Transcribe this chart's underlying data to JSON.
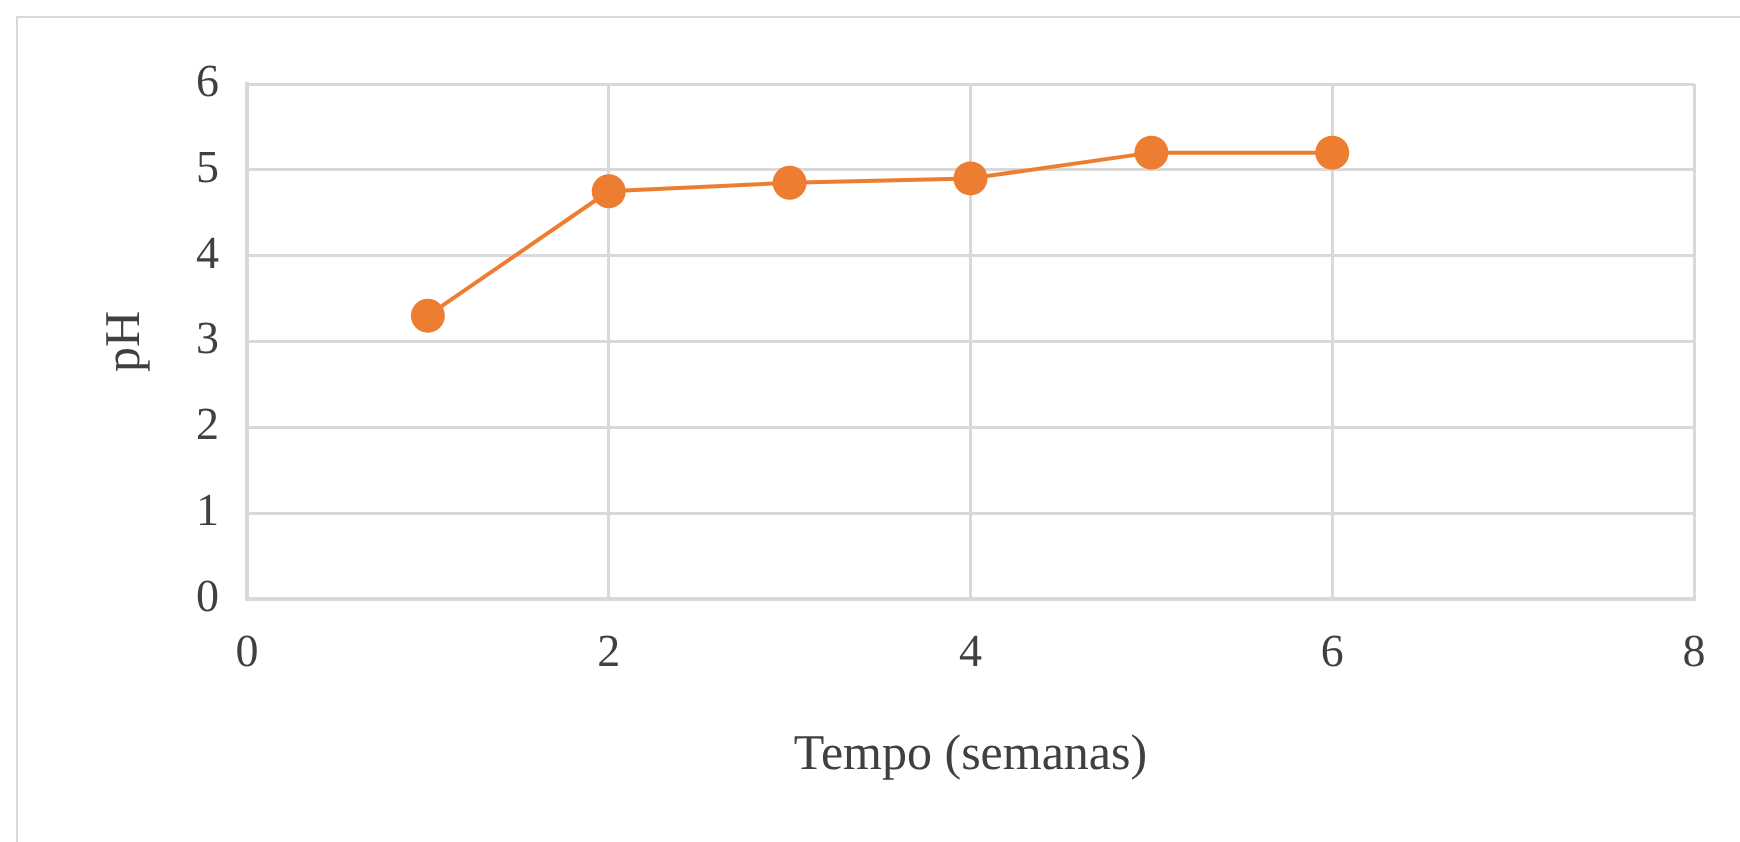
{
  "chart_data": {
    "type": "line",
    "xlabel": "Tempo (semanas)",
    "ylabel": "pH",
    "x": [
      1,
      2,
      3,
      4,
      5,
      6
    ],
    "values": [
      3.3,
      4.75,
      4.85,
      4.9,
      5.2,
      5.2
    ],
    "color": "#ed7d31",
    "xlim": [
      0,
      8
    ],
    "xticks": [
      0,
      2,
      4,
      6,
      8
    ],
    "ylim": [
      0,
      6
    ],
    "yticks": [
      0,
      1,
      2,
      3,
      4,
      5,
      6
    ],
    "grid": true,
    "marker": "circle",
    "line_style": "solid"
  }
}
